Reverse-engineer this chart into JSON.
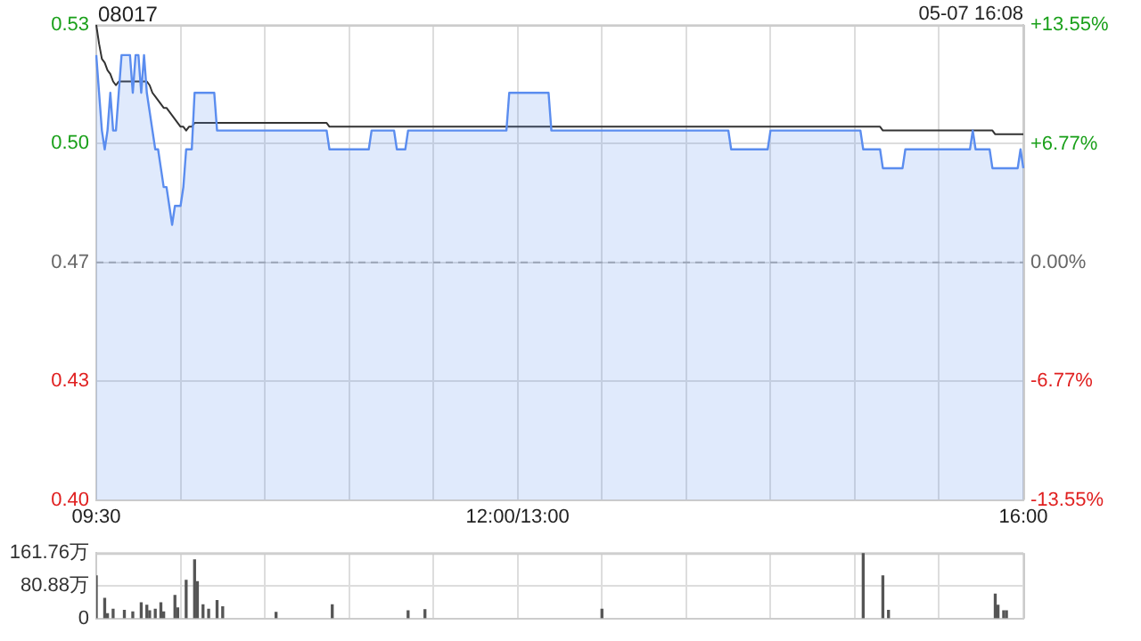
{
  "chart_data": [
    {
      "type": "area",
      "title": "08017",
      "annotations": [
        "05-07 16:08"
      ],
      "categories": [
        "09:30",
        null,
        null,
        null,
        null,
        null,
        null,
        null,
        null,
        null,
        null,
        null,
        null,
        null,
        null,
        null,
        null,
        null,
        null,
        null,
        null,
        null,
        null,
        null,
        null,
        null,
        null,
        null,
        null,
        null,
        null,
        null,
        null,
        null,
        null,
        null,
        null,
        null,
        null,
        null,
        null,
        null,
        null,
        null,
        null,
        null,
        null,
        null,
        null,
        null,
        null,
        null,
        null,
        null,
        null,
        null,
        null,
        null,
        null,
        null,
        null,
        null,
        null,
        null,
        null,
        null,
        null,
        null,
        null,
        null,
        null,
        null,
        null,
        null,
        null,
        null,
        null,
        null,
        null,
        null,
        null,
        null,
        null,
        null,
        null,
        null,
        null,
        null,
        null,
        null,
        null,
        null,
        null,
        null,
        null,
        null,
        null,
        null,
        null,
        null,
        null,
        null,
        null,
        null,
        null,
        null,
        null,
        null,
        null,
        null,
        null,
        null,
        null,
        null,
        null,
        null,
        null,
        null,
        null,
        null,
        null,
        null,
        null,
        null,
        null,
        null,
        null,
        null,
        null,
        null,
        null,
        null,
        null,
        null,
        null,
        null,
        null,
        null,
        null,
        null,
        null,
        null,
        null,
        null,
        null,
        null,
        null,
        null,
        null,
        null,
        "12:00/13:00",
        null,
        null,
        null,
        null,
        null,
        null,
        null,
        null,
        null,
        null,
        null,
        null,
        null,
        null,
        null,
        null,
        null,
        null,
        null,
        null,
        null,
        null,
        null,
        null,
        null,
        null,
        null,
        null,
        null,
        null,
        null,
        null,
        null,
        null,
        null,
        null,
        null,
        null,
        null,
        null,
        null,
        null,
        null,
        null,
        null,
        null,
        null,
        null,
        null,
        null,
        null,
        null,
        null,
        null,
        null,
        null,
        null,
        null,
        null,
        null,
        null,
        null,
        null,
        null,
        null,
        null,
        null,
        null,
        null,
        null,
        null,
        null,
        null,
        null,
        null,
        null,
        null,
        null,
        null,
        null,
        null,
        null,
        null,
        null,
        null,
        null,
        null,
        null,
        null,
        null,
        null,
        null,
        null,
        null,
        null,
        null,
        null,
        null,
        null,
        null,
        null,
        null,
        null,
        null,
        null,
        null,
        null,
        null,
        null,
        null,
        null,
        null,
        null,
        null,
        null,
        null,
        null,
        null,
        null,
        null,
        null,
        null,
        null,
        null,
        null,
        null,
        null,
        null,
        null,
        null,
        null,
        null,
        null,
        null,
        null,
        null,
        null,
        null,
        null,
        null,
        null,
        null,
        null,
        null,
        null,
        null,
        null,
        null,
        null,
        null,
        null,
        null,
        null,
        null,
        null,
        null,
        null,
        null,
        null,
        null,
        null,
        null,
        null,
        null,
        null,
        null,
        null,
        null,
        null,
        null,
        null,
        null,
        null,
        null,
        null,
        null,
        null,
        null,
        null,
        "16:00"
      ],
      "ylim": [
        0.402,
        0.528
      ],
      "yticks": [
        {
          "value": 0.402,
          "label": "0.40"
        },
        {
          "value": 0.4335,
          "label": "0.43"
        },
        {
          "value": 0.465,
          "label": "0.47"
        },
        {
          "value": 0.4965,
          "label": "0.50"
        },
        {
          "value": 0.528,
          "label": "0.53"
        }
      ],
      "y2lim": [
        -13.55,
        13.55
      ],
      "y2ticks": [
        {
          "value": -13.55,
          "label": "-13.55%"
        },
        {
          "value": -6.77,
          "label": "-6.77%"
        },
        {
          "value": 0,
          "label": "0.00%"
        },
        {
          "value": 6.77,
          "label": "+6.77%"
        },
        {
          "value": 13.55,
          "label": "+13.55%"
        }
      ],
      "grid": true,
      "legend": false,
      "ref_lines": [
        {
          "axis": "y",
          "value": 0.465,
          "line_style": "dashed",
          "color": "#aaaaaa"
        }
      ],
      "series": [
        {
          "color": "#5b8def",
          "values": [
            0.52,
            0.51,
            0.5,
            0.495,
            0.5,
            0.51,
            0.5,
            0.5,
            0.51,
            0.52,
            0.52,
            0.52,
            0.52,
            0.51,
            0.52,
            0.52,
            0.51,
            0.52,
            0.51,
            0.505,
            0.5,
            0.495,
            0.495,
            0.49,
            0.485,
            0.485,
            0.48,
            0.475,
            0.48,
            0.48,
            0.48,
            0.485,
            0.495,
            0.495,
            0.495,
            0.51,
            0.51,
            0.51,
            0.51,
            0.51,
            0.51,
            0.51,
            0.51,
            0.5,
            0.5,
            0.5,
            0.5,
            0.5,
            0.5,
            0.5,
            0.5,
            0.5,
            0.5,
            0.5,
            0.5,
            0.5,
            0.5,
            0.5,
            0.5,
            0.5,
            0.5,
            0.5,
            0.5,
            0.5,
            0.5,
            0.5,
            0.5,
            0.5,
            0.5,
            0.5,
            0.5,
            0.5,
            0.5,
            0.5,
            0.5,
            0.5,
            0.5,
            0.5,
            0.5,
            0.5,
            0.5,
            0.5,
            0.5,
            0.495,
            0.495,
            0.495,
            0.495,
            0.495,
            0.495,
            0.495,
            0.495,
            0.495,
            0.495,
            0.495,
            0.495,
            0.495,
            0.495,
            0.495,
            0.5,
            0.5,
            0.5,
            0.5,
            0.5,
            0.5,
            0.5,
            0.5,
            0.5,
            0.495,
            0.495,
            0.495,
            0.495,
            0.5,
            0.5,
            0.5,
            0.5,
            0.5,
            0.5,
            0.5,
            0.5,
            0.5,
            0.5,
            0.5,
            0.5,
            0.5,
            0.5,
            0.5,
            0.5,
            0.5,
            0.5,
            0.5,
            0.5,
            0.5,
            0.5,
            0.5,
            0.5,
            0.5,
            0.5,
            0.5,
            0.5,
            0.5,
            0.5,
            0.5,
            0.5,
            0.5,
            0.5,
            0.5,
            0.5,
            0.51,
            0.51,
            0.51,
            0.51,
            0.51,
            0.51,
            0.51,
            0.51,
            0.51,
            0.51,
            0.51,
            0.51,
            0.51,
            0.51,
            0.51,
            0.5,
            0.5,
            0.5,
            0.5,
            0.5,
            0.5,
            0.5,
            0.5,
            0.5,
            0.5,
            0.5,
            0.5,
            0.5,
            0.5,
            0.5,
            0.5,
            0.5,
            0.5,
            0.5,
            0.5,
            0.5,
            0.5,
            0.5,
            0.5,
            0.5,
            0.5,
            0.5,
            0.5,
            0.5,
            0.5,
            0.5,
            0.5,
            0.5,
            0.5,
            0.5,
            0.5,
            0.5,
            0.5,
            0.5,
            0.5,
            0.5,
            0.5,
            0.5,
            0.5,
            0.5,
            0.5,
            0.5,
            0.5,
            0.5,
            0.5,
            0.5,
            0.5,
            0.5,
            0.5,
            0.5,
            0.5,
            0.5,
            0.5,
            0.5,
            0.5,
            0.5,
            0.5,
            0.5,
            0.5,
            0.495,
            0.495,
            0.495,
            0.495,
            0.495,
            0.495,
            0.495,
            0.495,
            0.495,
            0.495,
            0.495,
            0.495,
            0.495,
            0.495,
            0.5,
            0.5,
            0.5,
            0.5,
            0.5,
            0.5,
            0.5,
            0.5,
            0.5,
            0.5,
            0.5,
            0.5,
            0.5,
            0.5,
            0.5,
            0.5,
            0.5,
            0.5,
            0.5,
            0.5,
            0.5,
            0.5,
            0.5,
            0.5,
            0.5,
            0.5,
            0.5,
            0.5,
            0.5,
            0.5,
            0.5,
            0.5,
            0.5,
            0.495,
            0.495,
            0.495,
            0.495,
            0.495,
            0.495,
            0.495,
            0.49,
            0.49,
            0.49,
            0.49,
            0.49,
            0.49,
            0.49,
            0.49,
            0.495,
            0.495,
            0.495,
            0.495,
            0.495,
            0.495,
            0.495,
            0.495,
            0.495,
            0.495,
            0.495,
            0.495,
            0.495,
            0.495,
            0.495,
            0.495,
            0.495,
            0.495,
            0.495,
            0.495,
            0.495,
            0.495,
            0.495,
            0.495,
            0.5,
            0.495,
            0.495,
            0.495,
            0.495,
            0.495,
            0.495,
            0.49,
            0.49,
            0.49,
            0.49,
            0.49,
            0.49,
            0.49,
            0.49,
            0.49,
            0.49,
            0.495,
            0.49
          ]
        },
        {
          "type": "line",
          "color": "#333333",
          "values": [
            0.528,
            0.523,
            0.519,
            0.518,
            0.516,
            0.515,
            0.513,
            0.512,
            0.513,
            0.513,
            0.513,
            0.513,
            0.513,
            0.513,
            0.513,
            0.513,
            0.513,
            0.513,
            0.513,
            0.512,
            0.51,
            0.509,
            0.508,
            0.507,
            0.506,
            0.506,
            0.505,
            0.504,
            0.503,
            0.502,
            0.501,
            0.501,
            0.5,
            0.501,
            0.501,
            0.502,
            0.502,
            0.502,
            0.502,
            0.502,
            0.502,
            0.502,
            0.502,
            0.502,
            0.502,
            0.502,
            0.502,
            0.502,
            0.502,
            0.502,
            0.502,
            0.502,
            0.502,
            0.502,
            0.502,
            0.502,
            0.502,
            0.502,
            0.502,
            0.502,
            0.502,
            0.502,
            0.502,
            0.502,
            0.502,
            0.502,
            0.502,
            0.502,
            0.502,
            0.502,
            0.502,
            0.502,
            0.502,
            0.502,
            0.502,
            0.502,
            0.502,
            0.502,
            0.502,
            0.502,
            0.502,
            0.502,
            0.502,
            0.501,
            0.501,
            0.501,
            0.501,
            0.501,
            0.501,
            0.501,
            0.501,
            0.501,
            0.501,
            0.501,
            0.501,
            0.501,
            0.501,
            0.501,
            0.501,
            0.501,
            0.501,
            0.501,
            0.501,
            0.501,
            0.501,
            0.501,
            0.501,
            0.501,
            0.501,
            0.501,
            0.501,
            0.501,
            0.501,
            0.501,
            0.501,
            0.501,
            0.501,
            0.501,
            0.501,
            0.501,
            0.501,
            0.501,
            0.501,
            0.501,
            0.501,
            0.501,
            0.501,
            0.501,
            0.501,
            0.501,
            0.501,
            0.501,
            0.501,
            0.501,
            0.501,
            0.501,
            0.501,
            0.501,
            0.501,
            0.501,
            0.501,
            0.501,
            0.501,
            0.501,
            0.501,
            0.501,
            0.501,
            0.501,
            0.501,
            0.501,
            0.501,
            0.501,
            0.501,
            0.501,
            0.501,
            0.501,
            0.501,
            0.501,
            0.501,
            0.501,
            0.501,
            0.501,
            0.501,
            0.501,
            0.501,
            0.501,
            0.501,
            0.501,
            0.501,
            0.501,
            0.501,
            0.501,
            0.501,
            0.501,
            0.501,
            0.501,
            0.501,
            0.501,
            0.501,
            0.501,
            0.501,
            0.501,
            0.501,
            0.501,
            0.501,
            0.501,
            0.501,
            0.501,
            0.501,
            0.501,
            0.501,
            0.501,
            0.501,
            0.501,
            0.501,
            0.501,
            0.501,
            0.501,
            0.501,
            0.501,
            0.501,
            0.501,
            0.501,
            0.501,
            0.501,
            0.501,
            0.501,
            0.501,
            0.501,
            0.501,
            0.501,
            0.501,
            0.501,
            0.501,
            0.501,
            0.501,
            0.501,
            0.501,
            0.501,
            0.501,
            0.501,
            0.501,
            0.501,
            0.501,
            0.501,
            0.501,
            0.501,
            0.501,
            0.501,
            0.501,
            0.501,
            0.501,
            0.501,
            0.501,
            0.501,
            0.501,
            0.501,
            0.501,
            0.501,
            0.501,
            0.501,
            0.501,
            0.501,
            0.501,
            0.501,
            0.501,
            0.501,
            0.501,
            0.501,
            0.501,
            0.501,
            0.501,
            0.501,
            0.501,
            0.501,
            0.501,
            0.501,
            0.501,
            0.501,
            0.501,
            0.501,
            0.501,
            0.501,
            0.501,
            0.501,
            0.501,
            0.501,
            0.501,
            0.501,
            0.501,
            0.501,
            0.501,
            0.501,
            0.501,
            0.501,
            0.501,
            0.501,
            0.501,
            0.501,
            0.501,
            0.5,
            0.5,
            0.5,
            0.5,
            0.5,
            0.5,
            0.5,
            0.5,
            0.5,
            0.5,
            0.5,
            0.5,
            0.5,
            0.5,
            0.5,
            0.5,
            0.5,
            0.5,
            0.5,
            0.5,
            0.5,
            0.5,
            0.5,
            0.5,
            0.5,
            0.5,
            0.5,
            0.5,
            0.5,
            0.5,
            0.5,
            0.5,
            0.5,
            0.5,
            0.5,
            0.5,
            0.5,
            0.5,
            0.5,
            0.5,
            0.499,
            0.499,
            0.499,
            0.499,
            0.499,
            0.499,
            0.499,
            0.499,
            0.499,
            0.499,
            0.499
          ]
        }
      ]
    },
    {
      "type": "bar",
      "tick_labels": "y",
      "grid": true,
      "legend": false,
      "categories": [
        null,
        null,
        null,
        null,
        null,
        null,
        null,
        null,
        null,
        null,
        null,
        null,
        null,
        null,
        null,
        null,
        null,
        null,
        null,
        null,
        null,
        null,
        null,
        null,
        null,
        null,
        null,
        null,
        null,
        null,
        null,
        null,
        null,
        null,
        null,
        null,
        null,
        null,
        null,
        null,
        null,
        null,
        null,
        null,
        null,
        null,
        null,
        null,
        null,
        null,
        null,
        null,
        null,
        null,
        null,
        null,
        null,
        null,
        null,
        null,
        null,
        null,
        null,
        null,
        null,
        null,
        null,
        null,
        null,
        null,
        null,
        null,
        null,
        null,
        null,
        null,
        null,
        null,
        null,
        null,
        null,
        null,
        null,
        null,
        null,
        null,
        null,
        null,
        null,
        null,
        null,
        null,
        null,
        null,
        null,
        null,
        null,
        null,
        null,
        null,
        null,
        null,
        null,
        null,
        null,
        null,
        null,
        null,
        null,
        null,
        null,
        null,
        null,
        null,
        null,
        null,
        null,
        null,
        null,
        null,
        null,
        null,
        null,
        null,
        null,
        null,
        null,
        null,
        null,
        null,
        null,
        null,
        null,
        null,
        null,
        null,
        null,
        null,
        null,
        null,
        null,
        null,
        null,
        null,
        null,
        null,
        null,
        null,
        null,
        null,
        null,
        null,
        null,
        null,
        null,
        null,
        null,
        null,
        null,
        null,
        null,
        null,
        null,
        null,
        null,
        null,
        null,
        null,
        null,
        null,
        null,
        null,
        null,
        null,
        null,
        null,
        null,
        null,
        null,
        null,
        null,
        null,
        null,
        null,
        null,
        null,
        null,
        null,
        null,
        null,
        null,
        null,
        null,
        null,
        null,
        null,
        null,
        null,
        null,
        null,
        null,
        null,
        null,
        null,
        null,
        null,
        null,
        null,
        null,
        null,
        null,
        null,
        null,
        null,
        null,
        null,
        null,
        null,
        null,
        null,
        null,
        null,
        null,
        null,
        null,
        null,
        null,
        null,
        null,
        null,
        null,
        null,
        null,
        null,
        null,
        null,
        null,
        null,
        null,
        null,
        null,
        null,
        null,
        null,
        null,
        null,
        null,
        null,
        null,
        null,
        null,
        null,
        null,
        null,
        null,
        null,
        null,
        null,
        null,
        null,
        null,
        null,
        null,
        null,
        null,
        null,
        null,
        null,
        null,
        null,
        null,
        null,
        null,
        null,
        null,
        null,
        null,
        null,
        null,
        null,
        null,
        null,
        null,
        null,
        null,
        null,
        null,
        null,
        null,
        null,
        null,
        null,
        null,
        null,
        null,
        null,
        null,
        null,
        null,
        null,
        null,
        null,
        null,
        null,
        null,
        null,
        null,
        null,
        null,
        null,
        null,
        null,
        null,
        null,
        null,
        null,
        null,
        null,
        null,
        null,
        null,
        null,
        null,
        null,
        null,
        null,
        null,
        null,
        null,
        null,
        null
      ],
      "ylim": [
        0,
        161.76
      ],
      "yticks": [
        {
          "value": 0,
          "label": "0"
        },
        {
          "value": 80.88,
          "label": "80.88万"
        },
        {
          "value": 161.76,
          "label": "161.76万"
        }
      ],
      "color": "#555555",
      "values": [
        105,
        null,
        null,
        50,
        12,
        null,
        23,
        null,
        null,
        null,
        20,
        null,
        null,
        16,
        null,
        null,
        39,
        null,
        33,
        19,
        null,
        23,
        null,
        39,
        16,
        null,
        null,
        null,
        57,
        26,
        null,
        null,
        94,
        null,
        null,
        145,
        91,
        null,
        34,
        null,
        23,
        null,
        null,
        44,
        null,
        29,
        null,
        null,
        null,
        null,
        null,
        null,
        null,
        null,
        null,
        null,
        null,
        null,
        null,
        null,
        null,
        null,
        null,
        null,
        15,
        null,
        null,
        null,
        null,
        null,
        null,
        null,
        null,
        null,
        null,
        null,
        null,
        null,
        null,
        null,
        null,
        null,
        null,
        null,
        34,
        null,
        null,
        null,
        null,
        null,
        null,
        null,
        null,
        null,
        null,
        null,
        null,
        null,
        null,
        null,
        null,
        null,
        null,
        null,
        null,
        null,
        null,
        null,
        null,
        null,
        null,
        19,
        null,
        null,
        null,
        null,
        null,
        22,
        null,
        null,
        null,
        null,
        null,
        null,
        null,
        null,
        null,
        null,
        null,
        null,
        null,
        null,
        null,
        null,
        null,
        null,
        null,
        null,
        null,
        null,
        null,
        null,
        null,
        null,
        null,
        null,
        null,
        null,
        null,
        null,
        null,
        null,
        null,
        null,
        null,
        null,
        null,
        null,
        null,
        null,
        null,
        null,
        null,
        null,
        null,
        null,
        null,
        null,
        null,
        null,
        null,
        null,
        null,
        null,
        null,
        null,
        null,
        null,
        null,
        null,
        23,
        null,
        null,
        null,
        null,
        null,
        null,
        null,
        null,
        null,
        null,
        null,
        null,
        null,
        null,
        null,
        null,
        null,
        null,
        null,
        null,
        null,
        null,
        null,
        null,
        null,
        null,
        null,
        null,
        null,
        null,
        null,
        null,
        null,
        null,
        null,
        null,
        null,
        null,
        null,
        null,
        null,
        null,
        null,
        null,
        null,
        null,
        null,
        null,
        null,
        null,
        null,
        null,
        null,
        null,
        null,
        null,
        null,
        null,
        null,
        null,
        null,
        null,
        null,
        null,
        null,
        null,
        null,
        null,
        null,
        null,
        null,
        null,
        null,
        null,
        null,
        null,
        null,
        null,
        null,
        null,
        null,
        null,
        null,
        null,
        null,
        null,
        null,
        null,
        null,
        null,
        null,
        null,
        161,
        null,
        null,
        null,
        null,
        null,
        null,
        105,
        null,
        20,
        null,
        null,
        null,
        null,
        null,
        null,
        null,
        null,
        null,
        null,
        null,
        null,
        null,
        null,
        null,
        null,
        null,
        null,
        null,
        null,
        null,
        null,
        null,
        null,
        null,
        null,
        null,
        null,
        null,
        null,
        null,
        null,
        null,
        null,
        null,
        null,
        null,
        60,
        33,
        null,
        19,
        19,
        null,
        null,
        null,
        null,
        null,
        null
      ]
    }
  ]
}
